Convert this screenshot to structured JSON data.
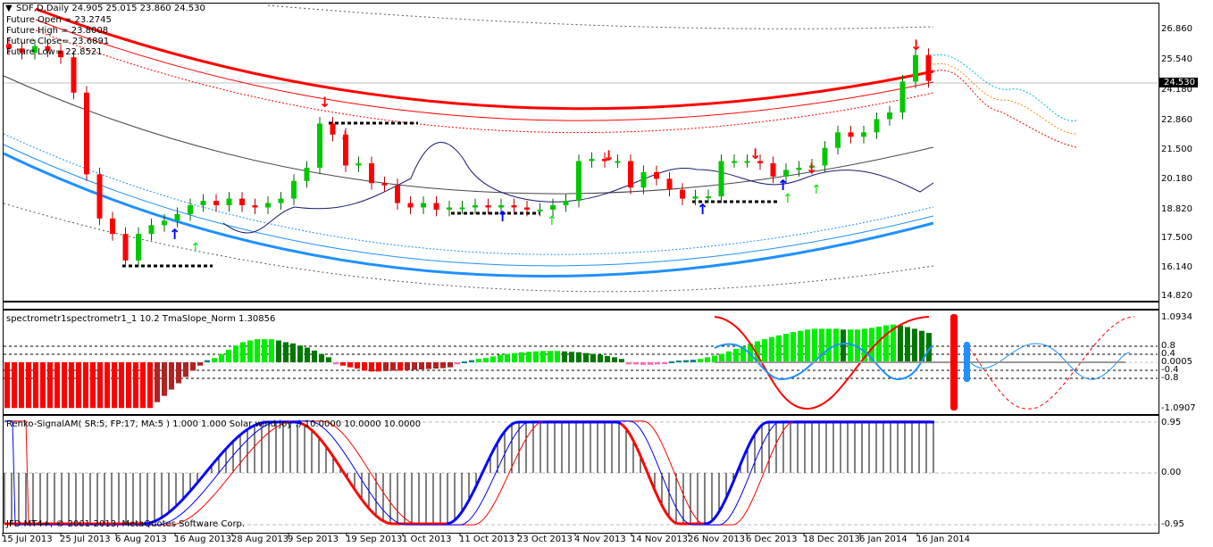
{
  "header": {
    "symbol_line": "SDF,D,Daily  24.905 25.015 23.860 24.530",
    "future_open": "Future Open = 23.2745",
    "future_high": "Future High = 23.8008",
    "future_close": "Future Close= 23.6891",
    "future_low": "Future Low= 22.8521"
  },
  "price_axis": {
    "ticks": [
      "26.860",
      "25.540",
      "24.180",
      "22.860",
      "21.500",
      "20.180",
      "18.820",
      "17.500",
      "16.140",
      "14.820"
    ],
    "current_price": "24.530"
  },
  "spectrometer": {
    "label": "spectrometr1spectrometr1_1  10.2 TmaSlope_Norm 1.30856",
    "ticks": [
      "1.0934",
      "0.8",
      "0.4",
      "0.0005",
      "-0.4",
      "-0.8",
      "-1.0907"
    ]
  },
  "renko": {
    "label": "Renko-SignalAM( SR:5, FP:17, MA:5 ) 1.000 1.000  Solar wind joy :) 10.0000 10.0000 10.0000",
    "ticks": [
      "0.95",
      "0.00",
      "-0.95"
    ],
    "copyright": "JFD MT4+, © 2001-2013, MetaQuotes Software Corp."
  },
  "dates": [
    "15 Jul 2013",
    "25 Jul 2013",
    "6 Aug 2013",
    "16 Aug 2013",
    "28 Aug 2013",
    "9 Sep 2013",
    "19 Sep 2013",
    "1 Oct 2013",
    "11 Oct 2013",
    "23 Oct 2013",
    "4 Nov 2013",
    "14 Nov 2013",
    "26 Nov 2013",
    "6 Dec 2013",
    "18 Dec 2013",
    "6 Jan 2014",
    "16 Jan 2014"
  ],
  "colors": {
    "bull": "#00c800",
    "bear": "#ff0000",
    "band_red": "#ff0000",
    "band_blue": "#1e90ff"
  },
  "chart_data": {
    "type": "candlestick",
    "closes": [
      26.0,
      25.8,
      26.1,
      25.9,
      25.6,
      24.0,
      20.3,
      18.3,
      17.6,
      16.4,
      17.6,
      18.0,
      18.2,
      18.5,
      18.9,
      19.1,
      18.9,
      19.2,
      18.9,
      18.8,
      19.0,
      19.2,
      20.0,
      20.6,
      22.6,
      22.1,
      20.7,
      20.8,
      19.9,
      19.8,
      19.0,
      18.8,
      19.0,
      18.7,
      18.8,
      18.8,
      18.9,
      18.8,
      18.9,
      18.8,
      18.7,
      18.7,
      18.9,
      19.1,
      20.9,
      21.0,
      20.9,
      20.9,
      19.7,
      20.4,
      20.1,
      19.6,
      19.2,
      19.3,
      19.3,
      20.9,
      20.9,
      20.9,
      20.8,
      20.2,
      20.5,
      20.6,
      20.7,
      21.5,
      22.2,
      22.0,
      22.2,
      22.8,
      23.1,
      24.5,
      25.7,
      24.53
    ],
    "ylim": [
      14.82,
      26.86
    ],
    "spectrometer_values": [
      -1.09,
      -1.09,
      -1.09,
      -1.09,
      -1.09,
      -1.09,
      -1.09,
      -1.09,
      -1.09,
      -1.09,
      -1.09,
      -1.09,
      -1.09,
      -1.09,
      -1.09,
      -1.09,
      -1.09,
      -1.09,
      -1.09,
      -1.09,
      -1.09,
      -0.95,
      -0.8,
      -0.65,
      -0.5,
      -0.35,
      -0.2,
      -0.08,
      0.05,
      0.1,
      0.2,
      0.3,
      0.4,
      0.48,
      0.52,
      0.55,
      0.55,
      0.55,
      0.52,
      0.48,
      0.45,
      0.4,
      0.35,
      0.28,
      0.2,
      0.12,
      -0.05,
      -0.08,
      -0.12,
      -0.15,
      -0.2,
      -0.22,
      -0.22,
      -0.21,
      -0.2,
      -0.2,
      -0.19,
      -0.18,
      -0.17,
      -0.16,
      -0.15,
      -0.14,
      -0.12,
      -0.05,
      0.02,
      0.05,
      0.08,
      0.1,
      0.14,
      0.18,
      0.2,
      0.22,
      0.24,
      0.25,
      0.26,
      0.27,
      0.27,
      0.27,
      0.26,
      0.25,
      0.24,
      0.22,
      0.2,
      0.18,
      0.15,
      0.12,
      0.08,
      -0.05,
      -0.05,
      -0.06,
      -0.06,
      -0.05,
      -0.04,
      0.02,
      0.04,
      0.05,
      0.06,
      0.08,
      0.12,
      0.16,
      0.2,
      0.26,
      0.32,
      0.38,
      0.44,
      0.5,
      0.55,
      0.6,
      0.64,
      0.68,
      0.72,
      0.75,
      0.78,
      0.8,
      0.8,
      0.8,
      0.8,
      0.78,
      0.78,
      0.78,
      0.8,
      0.82,
      0.85,
      0.88,
      0.9,
      0.88,
      0.84,
      0.8,
      0.75,
      0.7
    ],
    "renko_keypoints": [
      [
        0,
        -0.95
      ],
      [
        160,
        -0.95
      ],
      [
        300,
        0.95
      ],
      [
        330,
        0.95
      ],
      [
        440,
        -0.95
      ],
      [
        500,
        -0.95
      ],
      [
        580,
        0.95
      ],
      [
        690,
        0.95
      ],
      [
        760,
        -0.95
      ],
      [
        790,
        -0.95
      ],
      [
        860,
        0.95
      ],
      [
        1045,
        0.95
      ]
    ]
  }
}
